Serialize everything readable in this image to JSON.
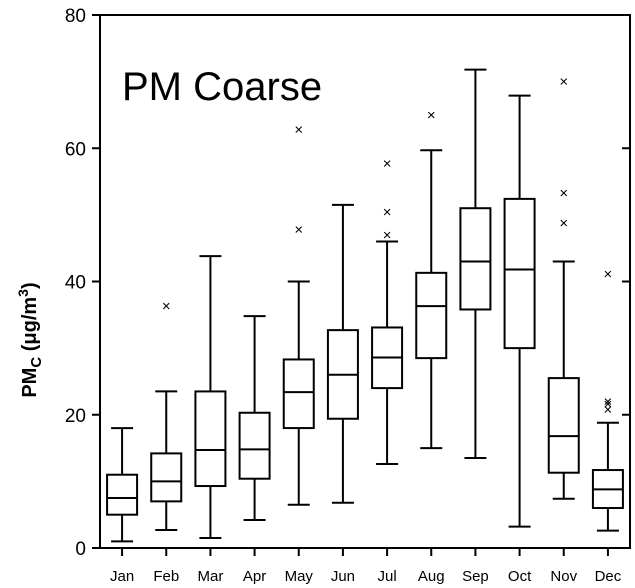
{
  "chart_data": {
    "type": "boxplot",
    "title": "PM Coarse",
    "ylabel_main": "PM",
    "ylabel_sub": "C",
    "ylabel_unit": " (μg/m",
    "ylabel_sup": "3",
    "ylabel_close": ")",
    "ylim": [
      0,
      80
    ],
    "yticks": [
      0,
      20,
      40,
      60,
      80
    ],
    "categories": [
      "Jan",
      "Feb",
      "Mar",
      "Apr",
      "May",
      "Jun",
      "Jul",
      "Aug",
      "Sep",
      "Oct",
      "Nov",
      "Dec"
    ],
    "boxes": [
      {
        "min": 1,
        "q1": 5,
        "median": 7.5,
        "q3": 11,
        "max": 18,
        "outliers": []
      },
      {
        "min": 2.7,
        "q1": 7,
        "median": 10,
        "q3": 14.2,
        "max": 23.5,
        "outliers": [
          36.3
        ]
      },
      {
        "min": 1.5,
        "q1": 9.3,
        "median": 14.7,
        "q3": 23.5,
        "max": 43.8,
        "outliers": []
      },
      {
        "min": 4.2,
        "q1": 10.4,
        "median": 14.8,
        "q3": 20.3,
        "max": 34.8,
        "outliers": []
      },
      {
        "min": 6.5,
        "q1": 18,
        "median": 23.4,
        "q3": 28.3,
        "max": 40,
        "outliers": [
          47.8,
          62.8
        ]
      },
      {
        "min": 6.8,
        "q1": 19.4,
        "median": 26,
        "q3": 32.7,
        "max": 51.5,
        "outliers": []
      },
      {
        "min": 12.6,
        "q1": 24,
        "median": 28.6,
        "q3": 33.1,
        "max": 46,
        "outliers": [
          47,
          50.4,
          57.7
        ]
      },
      {
        "min": 15,
        "q1": 28.5,
        "median": 36.3,
        "q3": 41.3,
        "max": 59.7,
        "outliers": [
          65
        ]
      },
      {
        "min": 13.5,
        "q1": 35.8,
        "median": 43,
        "q3": 51,
        "max": 71.8,
        "outliers": []
      },
      {
        "min": 3.2,
        "q1": 30,
        "median": 41.8,
        "q3": 52.4,
        "max": 67.9,
        "outliers": []
      },
      {
        "min": 7.4,
        "q1": 11.3,
        "median": 16.8,
        "q3": 25.5,
        "max": 43,
        "outliers": [
          48.8,
          53.3,
          70
        ]
      },
      {
        "min": 2.6,
        "q1": 6,
        "median": 8.8,
        "q3": 11.7,
        "max": 18.8,
        "outliers": [
          20.8,
          21.6,
          22,
          41.1
        ]
      }
    ],
    "outlier_symbol": "×",
    "grid": false,
    "legend": "none"
  }
}
